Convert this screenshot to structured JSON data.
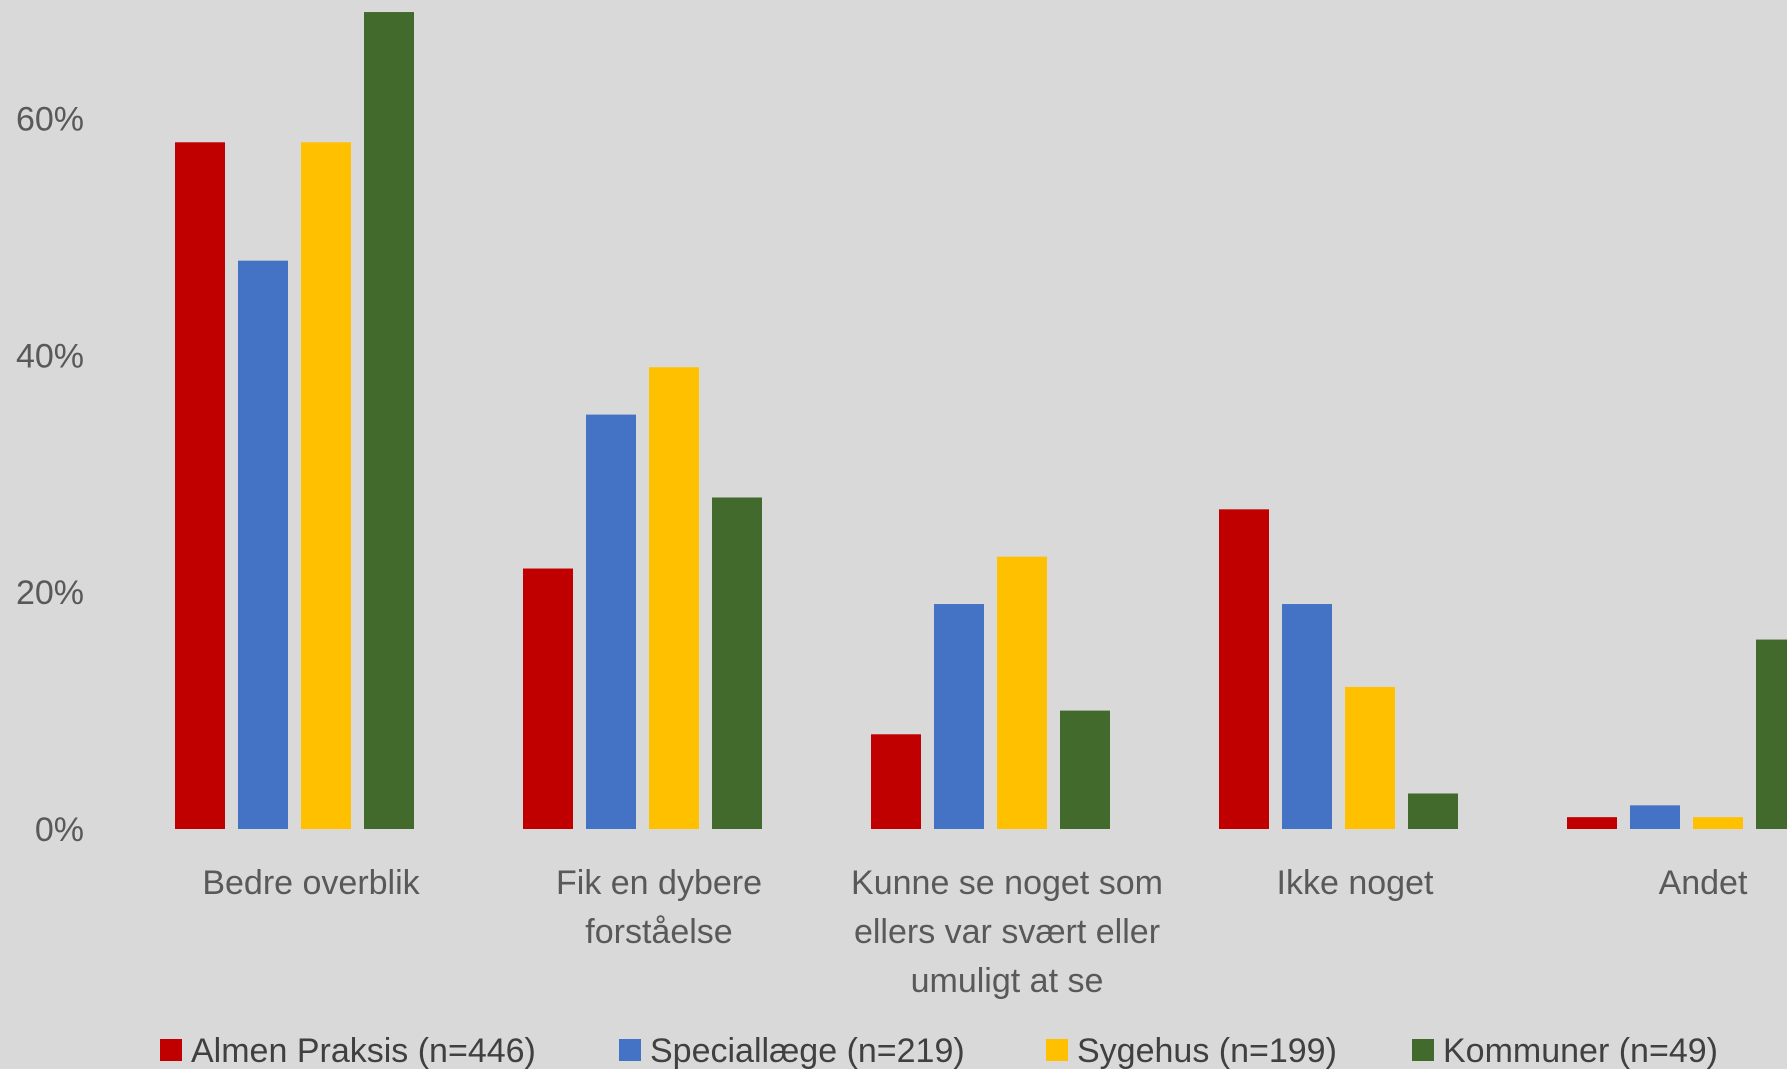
{
  "chart_data": {
    "type": "bar",
    "title": "",
    "xlabel": "",
    "ylabel": "",
    "ylim": [
      0,
      0.69
    ],
    "yticks": [
      0,
      0.2,
      0.4,
      0.6
    ],
    "ytick_labels": [
      "0%",
      "20%",
      "40%",
      "60%"
    ],
    "grid": false,
    "legend_position": "bottom",
    "categories": [
      "Bedre overblik",
      "Fik en dybere forståelse",
      "Kunne se noget som ellers var svært eller umuligt at se",
      "Ikke noget",
      "Andet"
    ],
    "category_lines": [
      [
        "Bedre overblik"
      ],
      [
        "Fik en dybere",
        "forståelse"
      ],
      [
        "Kunne se noget som",
        "ellers var svært eller",
        "umuligt at se"
      ],
      [
        "Ikke noget"
      ],
      [
        "Andet"
      ]
    ],
    "series": [
      {
        "name": "Almen Praksis (n=446)",
        "color": "#c00000",
        "values": [
          0.58,
          0.22,
          0.08,
          0.27,
          0.01
        ]
      },
      {
        "name": "Speciallæge (n=219)",
        "color": "#4472c4",
        "values": [
          0.48,
          0.35,
          0.19,
          0.19,
          0.02
        ]
      },
      {
        "name": "Sygehus (n=199)",
        "color": "#ffc000",
        "values": [
          0.58,
          0.39,
          0.23,
          0.12,
          0.01
        ]
      },
      {
        "name": "Kommuner (n=49)",
        "color": "#436a2d",
        "values": [
          0.69,
          0.28,
          0.1,
          0.03,
          0.16
        ]
      }
    ]
  }
}
